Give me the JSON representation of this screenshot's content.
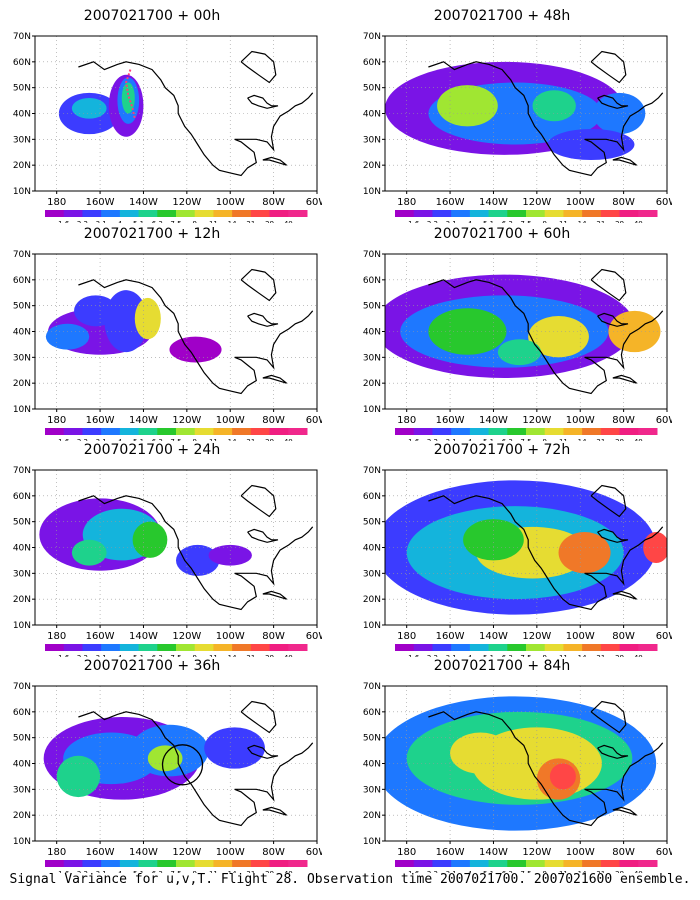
{
  "caption": "Signal Variance for u,v,T. Flight 28. Observation time 2007021700. 2007021600 ensemble.",
  "chart_data": [
    {
      "type": "heatmap",
      "title": "2007021700 + 00h",
      "lead_hours": 0
    },
    {
      "type": "heatmap",
      "title": "2007021700 + 12h",
      "lead_hours": 12
    },
    {
      "type": "heatmap",
      "title": "2007021700 + 24h",
      "lead_hours": 24
    },
    {
      "type": "heatmap",
      "title": "2007021700 + 36h",
      "lead_hours": 36
    },
    {
      "type": "heatmap",
      "title": "2007021700 + 48h",
      "lead_hours": 48
    },
    {
      "type": "heatmap",
      "title": "2007021700 + 60h",
      "lead_hours": 60
    },
    {
      "type": "heatmap",
      "title": "2007021700 + 72h",
      "lead_hours": 72
    },
    {
      "type": "heatmap",
      "title": "2007021700 + 84h",
      "lead_hours": 84
    }
  ],
  "shared_axes": {
    "xlim": [
      170,
      300
    ],
    "ylim": [
      10,
      70
    ],
    "x_ticks": [
      "180",
      "160W",
      "140W",
      "120W",
      "100W",
      "80W",
      "60W"
    ],
    "y_ticks": [
      "10N",
      "20N",
      "30N",
      "40N",
      "50N",
      "60N",
      "70N"
    ],
    "grid": true
  },
  "colorbar": {
    "labels": [
      "1.6",
      "2.2",
      "3.1",
      "4",
      "5.1",
      "6.3",
      "7.5",
      "9",
      "11",
      "14",
      "21",
      "29",
      "40"
    ],
    "colors": [
      "#a000c8",
      "#7a14e6",
      "#3c3cff",
      "#1e78ff",
      "#14b4dc",
      "#1ed28c",
      "#28c82d",
      "#a0e632",
      "#e6dc32",
      "#f5b428",
      "#f07828",
      "#ff4646",
      "#f01e82",
      "#f0288c"
    ]
  }
}
